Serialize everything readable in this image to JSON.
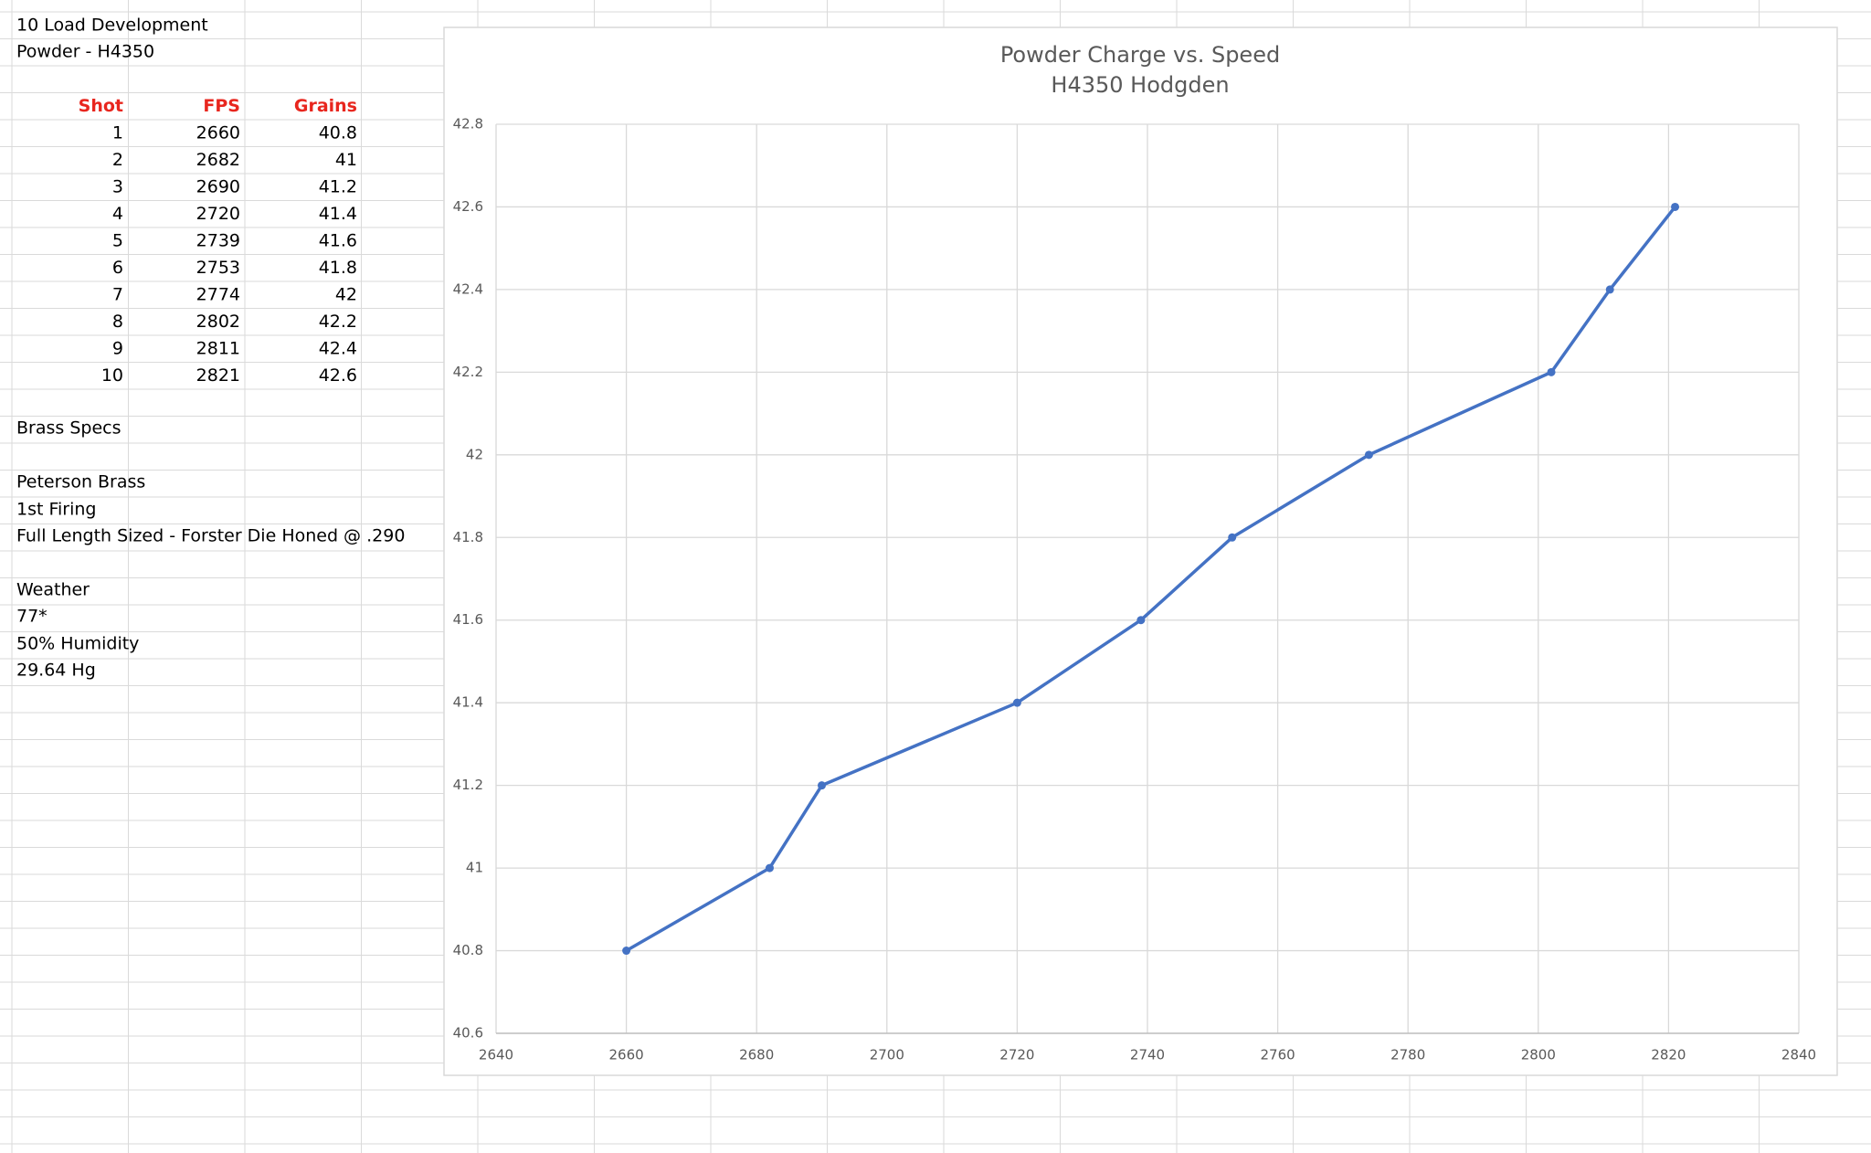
{
  "sheet": {
    "title": "10 Load Development",
    "powder": "Powder - H4350",
    "table": {
      "header": [
        "Shot",
        "FPS",
        "Grains"
      ],
      "rows": [
        [
          1,
          2660,
          40.8
        ],
        [
          2,
          2682,
          41
        ],
        [
          3,
          2690,
          41.2
        ],
        [
          4,
          2720,
          41.4
        ],
        [
          5,
          2739,
          41.6
        ],
        [
          6,
          2753,
          41.8
        ],
        [
          7,
          2774,
          42
        ],
        [
          8,
          2802,
          42.2
        ],
        [
          9,
          2811,
          42.4
        ],
        [
          10,
          2821,
          42.6
        ]
      ]
    },
    "brass_specs": "Brass Specs",
    "brass": "Peterson Brass",
    "firing": "1st Firing",
    "sizing": "Full Length Sized - Forster Die Honed @ .290",
    "weather": "Weather",
    "temperature": "77*",
    "humidity": "50% Humidity",
    "pressure": "29.64 Hg"
  },
  "chart_data": {
    "type": "line",
    "title": "Powder Charge vs. Speed",
    "subtitle": "H4350 Hodgden",
    "x": [
      2660,
      2682,
      2690,
      2720,
      2739,
      2753,
      2774,
      2802,
      2811,
      2821
    ],
    "series": [
      {
        "color": "#4472c4",
        "values": [
          40.8,
          41,
          41.2,
          41.4,
          41.6,
          41.8,
          42,
          42.2,
          42.4,
          42.6
        ]
      }
    ],
    "xlim": [
      2640,
      2840
    ],
    "xticks": [
      2640,
      2660,
      2680,
      2700,
      2720,
      2740,
      2760,
      2780,
      2800,
      2820,
      2840
    ],
    "ylim": [
      40.6,
      42.8
    ],
    "yticks": [
      40.6,
      40.8,
      41,
      41.2,
      41.4,
      41.6,
      41.8,
      42,
      42.2,
      42.4,
      42.6,
      42.8
    ],
    "grid": true
  }
}
